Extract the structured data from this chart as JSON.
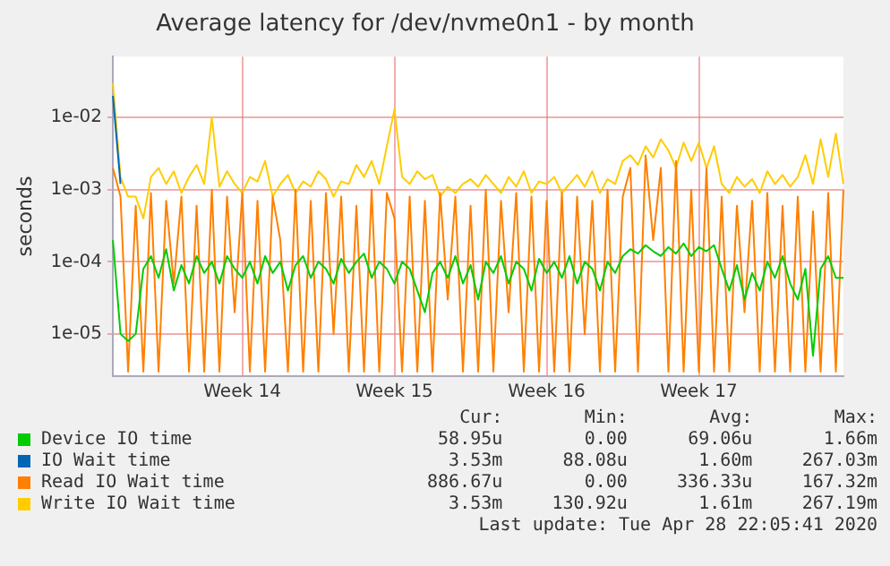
{
  "chart_data": {
    "type": "line",
    "title": "Average latency for /dev/nvme0n1 - by month",
    "ylabel": "seconds",
    "log": true,
    "grid": true,
    "legend": "bottom",
    "marker": "none",
    "line_style": "solid",
    "categories": [
      null,
      null,
      null,
      null,
      null,
      null,
      null,
      null,
      null,
      null,
      null,
      null,
      null,
      null,
      null,
      null,
      null,
      "Week 14",
      null,
      null,
      null,
      null,
      null,
      null,
      null,
      null,
      null,
      null,
      null,
      null,
      null,
      null,
      null,
      null,
      null,
      null,
      null,
      "Week 15",
      null,
      null,
      null,
      null,
      null,
      null,
      null,
      null,
      null,
      null,
      null,
      null,
      null,
      null,
      null,
      null,
      null,
      null,
      null,
      "Week 16",
      null,
      null,
      null,
      null,
      null,
      null,
      null,
      null,
      null,
      null,
      null,
      null,
      null,
      null,
      null,
      null,
      null,
      null,
      null,
      "Week 17",
      null,
      null,
      null,
      null,
      null,
      null,
      null,
      null,
      null,
      null,
      null,
      null,
      null,
      null,
      null,
      null,
      null,
      null,
      null
    ],
    "ylim": [
      2.6e-06,
      0.07
    ],
    "yticks": [
      {
        "value": 1e-05,
        "label": "1e-05"
      },
      {
        "value": 0.0001,
        "label": "1e-04"
      },
      {
        "value": 0.001,
        "label": "1e-03"
      },
      {
        "value": 0.01,
        "label": "1e-02"
      }
    ],
    "series": [
      {
        "name": "Device IO time",
        "color": "#00cc00",
        "values": [
          0.0002,
          1e-05,
          8e-06,
          1e-05,
          8e-05,
          0.00012,
          6e-05,
          0.00015,
          4e-05,
          9e-05,
          5e-05,
          0.00012,
          7e-05,
          0.0001,
          5e-05,
          0.00012,
          8e-05,
          6e-05,
          0.0001,
          5e-05,
          0.00012,
          7e-05,
          0.0001,
          4e-05,
          9e-05,
          0.00012,
          6e-05,
          0.0001,
          8e-05,
          5e-05,
          0.00011,
          7e-05,
          0.0001,
          0.00013,
          6e-05,
          0.0001,
          8e-05,
          5e-05,
          0.0001,
          8e-05,
          4e-05,
          2e-05,
          7e-05,
          0.0001,
          6e-05,
          0.00012,
          5e-05,
          9e-05,
          3e-05,
          0.0001,
          7e-05,
          0.00012,
          5e-05,
          0.0001,
          8e-05,
          4e-05,
          0.00011,
          7e-05,
          0.0001,
          6e-05,
          0.00012,
          5e-05,
          0.0001,
          8e-05,
          4e-05,
          0.0001,
          7e-05,
          0.00012,
          0.00015,
          0.00013,
          0.00017,
          0.00014,
          0.00012,
          0.00016,
          0.00013,
          0.00018,
          0.00012,
          0.00016,
          0.00014,
          0.00017,
          8e-05,
          4e-05,
          9e-05,
          3e-05,
          7e-05,
          4e-05,
          0.0001,
          6e-05,
          0.00012,
          5e-05,
          3e-05,
          8e-05,
          5e-06,
          8e-05,
          0.00012,
          6e-05,
          6e-05
        ]
      },
      {
        "name": "IO Wait time",
        "color": "#0066b3",
        "values": [
          0.02,
          0.0012,
          null,
          null,
          null,
          null,
          null,
          null,
          null,
          null,
          null,
          null,
          null,
          null,
          null,
          null,
          null,
          null,
          null,
          null,
          null,
          null,
          null,
          null,
          null,
          null,
          null,
          null,
          null,
          null,
          null,
          null,
          null,
          null,
          null,
          null,
          null,
          null,
          null,
          null,
          null,
          null,
          null,
          null,
          null,
          null,
          null,
          null,
          null,
          null,
          null,
          null,
          null,
          null,
          null,
          null,
          null,
          null,
          null,
          null,
          null,
          null,
          null,
          null,
          null,
          null,
          null,
          null,
          null,
          null,
          null,
          null,
          null,
          null,
          null,
          null,
          null,
          null,
          null,
          null,
          null,
          null,
          null,
          null,
          null,
          null,
          null,
          null,
          null,
          null,
          null,
          null,
          null,
          null,
          null,
          null,
          null
        ]
      },
      {
        "name": "Read IO Wait time",
        "color": "#ff8000",
        "values": [
          0.002,
          0.0008,
          3e-06,
          0.0006,
          3e-06,
          0.0009,
          3e-06,
          0.0007,
          5e-05,
          0.0008,
          3e-06,
          0.0006,
          3e-06,
          0.001,
          3e-06,
          0.0008,
          2e-05,
          0.0009,
          3e-06,
          0.0007,
          3e-06,
          0.0008,
          0.0002,
          3e-06,
          0.001,
          3e-06,
          0.0007,
          3e-06,
          0.0009,
          1e-05,
          0.0008,
          3e-06,
          0.0006,
          3e-06,
          0.001,
          3e-06,
          0.0009,
          0.0004,
          3e-06,
          0.0008,
          3e-06,
          0.0007,
          3e-06,
          0.0009,
          3e-05,
          0.0008,
          3e-06,
          0.0006,
          3e-06,
          0.001,
          3e-06,
          0.0007,
          2e-05,
          0.0009,
          3e-06,
          0.0008,
          3e-06,
          0.0007,
          3e-06,
          0.0009,
          3e-06,
          0.0008,
          1e-05,
          0.0007,
          3e-06,
          0.001,
          3e-06,
          0.0008,
          0.002,
          3e-06,
          0.003,
          0.0002,
          0.002,
          3e-06,
          0.0025,
          3e-06,
          0.001,
          3e-06,
          0.002,
          3e-06,
          0.0008,
          3e-06,
          0.0006,
          2e-05,
          0.0007,
          3e-06,
          0.0009,
          3e-06,
          0.0006,
          3e-06,
          0.0008,
          3e-06,
          0.0005,
          3e-06,
          0.0009,
          3e-06,
          0.001
        ]
      },
      {
        "name": "Write IO Wait time",
        "color": "#ffcc00",
        "values": [
          0.03,
          0.0015,
          0.0008,
          0.0008,
          0.0004,
          0.0015,
          0.002,
          0.0012,
          0.0018,
          0.0009,
          0.0015,
          0.0022,
          0.0012,
          0.01,
          0.0011,
          0.0018,
          0.0012,
          0.0009,
          0.0015,
          0.0013,
          0.0025,
          0.0008,
          0.0012,
          0.0016,
          0.0009,
          0.0013,
          0.0011,
          0.0018,
          0.0014,
          0.0008,
          0.0013,
          0.0012,
          0.0022,
          0.0015,
          0.0025,
          0.0012,
          0.004,
          0.013,
          0.0015,
          0.0012,
          0.0018,
          0.0014,
          0.0016,
          0.0008,
          0.0011,
          0.0009,
          0.0012,
          0.0014,
          0.0011,
          0.0016,
          0.0012,
          0.0009,
          0.0015,
          0.0011,
          0.0018,
          0.0009,
          0.0013,
          0.0012,
          0.0015,
          0.0009,
          0.0012,
          0.0016,
          0.0011,
          0.0018,
          0.0009,
          0.0014,
          0.0012,
          0.0025,
          0.003,
          0.0022,
          0.004,
          0.0028,
          0.005,
          0.0035,
          0.002,
          0.0045,
          0.0025,
          0.0045,
          0.002,
          0.004,
          0.0012,
          0.0009,
          0.0015,
          0.0011,
          0.0014,
          0.0009,
          0.0018,
          0.0012,
          0.0016,
          0.0011,
          0.0015,
          0.003,
          0.0012,
          0.005,
          0.0015,
          0.006,
          0.0012
        ]
      }
    ],
    "annotations": [
      "Cur:",
      "Min:",
      "Avg:",
      "Max:",
      "58.95u",
      "0.00",
      "69.06u",
      "1.66m",
      "3.53m",
      "88.08u",
      "1.60m",
      "267.03m",
      "886.67u",
      "0.00",
      "336.33u",
      "167.32m",
      "3.53m",
      "130.92u",
      "1.61m",
      "267.19m",
      "Last update: Tue Apr 28 22:05:41 2020"
    ]
  }
}
